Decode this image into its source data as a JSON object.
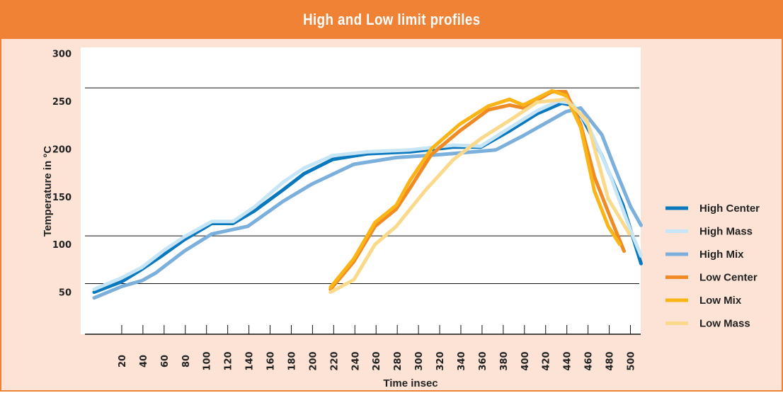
{
  "chart_data": {
    "type": "line",
    "title": "High and Low limit profiles",
    "xlabel": "Time insec",
    "ylabel": "Temperature in °C",
    "xticks": [
      20,
      40,
      60,
      80,
      100,
      120,
      140,
      160,
      180,
      200,
      220,
      240,
      260,
      280,
      300,
      320,
      340,
      360,
      380,
      400,
      420,
      440,
      460,
      480,
      500
    ],
    "yticks": [
      50,
      100,
      150,
      200,
      250,
      300
    ],
    "xlim": [
      -20,
      510
    ],
    "ylim": [
      5,
      300
    ],
    "gridlines_y": [
      59,
      109,
      264
    ],
    "legend_position": "right",
    "series": [
      {
        "name": "High Center",
        "color": "#0a78bd",
        "points": [
          [
            -6,
            50
          ],
          [
            20,
            61
          ],
          [
            39,
            74
          ],
          [
            59,
            89
          ],
          [
            79,
            105
          ],
          [
            105,
            122
          ],
          [
            125,
            122
          ],
          [
            145,
            135
          ],
          [
            172,
            157
          ],
          [
            192,
            174
          ],
          [
            219,
            189
          ],
          [
            252,
            195
          ],
          [
            292,
            197
          ],
          [
            333,
            202
          ],
          [
            359,
            202
          ],
          [
            386,
            219
          ],
          [
            412,
            237
          ],
          [
            435,
            248
          ],
          [
            445,
            246
          ],
          [
            455,
            232
          ],
          [
            473,
            193
          ],
          [
            493,
            141
          ],
          [
            510,
            80
          ]
        ]
      },
      {
        "name": "High Mass",
        "color": "#c6e5f6",
        "points": [
          [
            -6,
            53
          ],
          [
            20,
            65
          ],
          [
            39,
            76
          ],
          [
            59,
            93
          ],
          [
            79,
            108
          ],
          [
            105,
            124
          ],
          [
            125,
            124
          ],
          [
            145,
            139
          ],
          [
            172,
            165
          ],
          [
            192,
            180
          ],
          [
            219,
            193
          ],
          [
            252,
            197
          ],
          [
            292,
            199
          ],
          [
            333,
            204
          ],
          [
            359,
            203
          ],
          [
            386,
            222
          ],
          [
            412,
            240
          ],
          [
            432,
            250
          ],
          [
            445,
            248
          ],
          [
            460,
            225
          ],
          [
            480,
            175
          ],
          [
            500,
            115
          ],
          [
            510,
            88
          ]
        ]
      },
      {
        "name": "High Mix",
        "color": "#7bafdc",
        "points": [
          [
            -6,
            44
          ],
          [
            20,
            56
          ],
          [
            39,
            62
          ],
          [
            52,
            70
          ],
          [
            79,
            93
          ],
          [
            105,
            111
          ],
          [
            139,
            119
          ],
          [
            172,
            145
          ],
          [
            199,
            163
          ],
          [
            239,
            184
          ],
          [
            279,
            191
          ],
          [
            319,
            194
          ],
          [
            373,
            199
          ],
          [
            399,
            214
          ],
          [
            439,
            239
          ],
          [
            453,
            243
          ],
          [
            473,
            215
          ],
          [
            486,
            178
          ],
          [
            500,
            140
          ],
          [
            510,
            120
          ]
        ]
      },
      {
        "name": "Low Center",
        "color": "#f08a24",
        "points": [
          [
            217,
            53
          ],
          [
            239,
            82
          ],
          [
            259,
            119
          ],
          [
            279,
            137
          ],
          [
            292,
            159
          ],
          [
            312,
            194
          ],
          [
            339,
            219
          ],
          [
            366,
            241
          ],
          [
            386,
            246
          ],
          [
            399,
            243
          ],
          [
            426,
            260
          ],
          [
            439,
            260
          ],
          [
            453,
            226
          ],
          [
            466,
            171
          ],
          [
            479,
            134
          ],
          [
            494,
            93
          ]
        ]
      },
      {
        "name": "Low Mix",
        "color": "#fbb415",
        "points": [
          [
            217,
            55
          ],
          [
            239,
            85
          ],
          [
            259,
            123
          ],
          [
            279,
            141
          ],
          [
            292,
            167
          ],
          [
            312,
            200
          ],
          [
            339,
            226
          ],
          [
            366,
            245
          ],
          [
            386,
            252
          ],
          [
            399,
            246
          ],
          [
            426,
            261
          ],
          [
            439,
            256
          ],
          [
            453,
            223
          ],
          [
            466,
            156
          ],
          [
            479,
            119
          ],
          [
            490,
            100
          ]
        ]
      },
      {
        "name": "Low Mass",
        "color": "#fbd98a",
        "points": [
          [
            217,
            50
          ],
          [
            239,
            63
          ],
          [
            259,
            100
          ],
          [
            279,
            119
          ],
          [
            306,
            156
          ],
          [
            333,
            189
          ],
          [
            359,
            211
          ],
          [
            386,
            230
          ],
          [
            412,
            249
          ],
          [
            439,
            252
          ],
          [
            459,
            230
          ],
          [
            479,
            148
          ],
          [
            499,
            111
          ]
        ]
      }
    ]
  }
}
